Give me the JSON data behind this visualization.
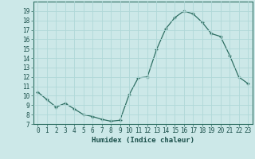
{
  "x": [
    0,
    1,
    2,
    3,
    4,
    5,
    6,
    7,
    8,
    9,
    10,
    11,
    12,
    13,
    14,
    15,
    16,
    17,
    18,
    19,
    20,
    21,
    22,
    23
  ],
  "y": [
    10.4,
    9.6,
    8.8,
    9.2,
    8.6,
    8.0,
    7.8,
    7.5,
    7.3,
    7.4,
    10.1,
    11.9,
    12.0,
    14.9,
    17.1,
    18.3,
    19.0,
    18.7,
    17.8,
    16.6,
    16.3,
    14.3,
    12.0,
    11.3
  ],
  "xlabel": "Humidex (Indice chaleur)",
  "xlim": [
    -0.5,
    23.5
  ],
  "ylim": [
    7,
    20
  ],
  "yticks": [
    7,
    8,
    9,
    10,
    11,
    12,
    13,
    14,
    15,
    16,
    17,
    18,
    19
  ],
  "xticks": [
    0,
    1,
    2,
    3,
    4,
    5,
    6,
    7,
    8,
    9,
    10,
    11,
    12,
    13,
    14,
    15,
    16,
    17,
    18,
    19,
    20,
    21,
    22,
    23
  ],
  "line_color": "#2d6e62",
  "bg_color": "#cce8e8",
  "grid_color": "#b0d8d8",
  "tick_fontsize": 5.5,
  "label_fontsize": 6.5
}
